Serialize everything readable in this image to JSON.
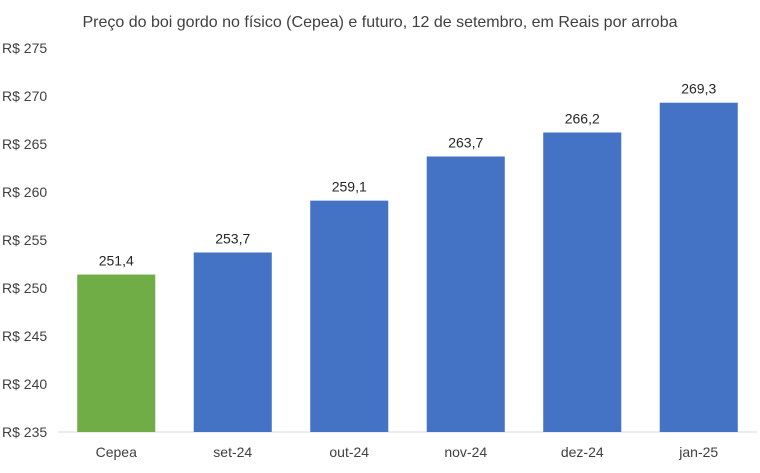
{
  "chart_data": {
    "type": "bar",
    "title": "Preço do boi gordo no físico (Cepea) e futuro, 12 de setembro, em Reais por arroba",
    "xlabel": "",
    "ylabel": "",
    "categories": [
      "Cepea",
      "set-24",
      "out-24",
      "nov-24",
      "dez-24",
      "jan-25"
    ],
    "values": [
      251.4,
      253.7,
      259.1,
      263.7,
      266.2,
      269.3
    ],
    "data_labels": [
      "251,4",
      "253,7",
      "259,1",
      "263,7",
      "266,2",
      "269,3"
    ],
    "ylim": [
      235,
      275
    ],
    "yticks": [
      235,
      240,
      245,
      250,
      255,
      260,
      265,
      270,
      275
    ],
    "ytick_labels": [
      "R$ 235",
      "R$ 240",
      "R$ 245",
      "R$ 250",
      "R$ 255",
      "R$ 260",
      "R$ 265",
      "R$ 270",
      "R$ 275"
    ],
    "bar_colors": [
      "#70ad47",
      "#4472c4",
      "#4472c4",
      "#4472c4",
      "#4472c4",
      "#4472c4"
    ],
    "grid": false,
    "legend": "none"
  }
}
